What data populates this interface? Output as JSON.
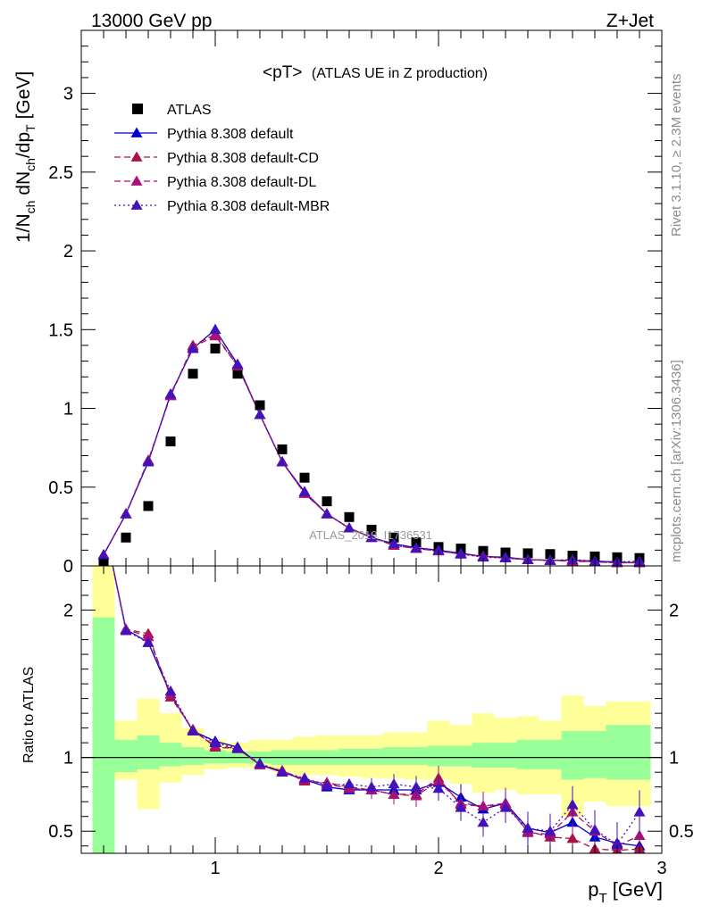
{
  "header": {
    "left": "13000 GeV pp",
    "right": "Z+Jet"
  },
  "side_texts": {
    "rivet": "Rivet 3.1.10, ≥ 2.3M events",
    "mcplots": "mcplots.cern.ch [arXiv:1306.3436]"
  },
  "chart_data": [
    {
      "type": "scatter",
      "title": "<pT> (ATLAS UE in Z production)",
      "title_main": "<pT>",
      "title_sub": "(ATLAS UE in Z production)",
      "watermark": "ATLAS_2019_I1736531",
      "ylabel": "1/N_ch dN_ch/dp_T [GeV]",
      "ylabel_parts": {
        "a": "1/N",
        "a_sub": "ch",
        "b": " dN",
        "b_sub": "ch",
        "c": "/dp",
        "c_sub": "T",
        "d": " [GeV]"
      },
      "ylim": [
        0,
        3.4
      ],
      "xlim": [
        0.4,
        3.0
      ],
      "yticks": [
        0,
        0.5,
        1,
        1.5,
        2,
        2.5,
        3
      ],
      "ytick_labels": [
        "0",
        "0.5",
        "1",
        "1.5",
        "2",
        "2.5",
        "3"
      ],
      "legend_position": "top-left",
      "x": [
        0.5,
        0.6,
        0.7,
        0.8,
        0.9,
        1.0,
        1.1,
        1.2,
        1.3,
        1.4,
        1.5,
        1.6,
        1.7,
        1.8,
        1.9,
        2.0,
        2.1,
        2.2,
        2.3,
        2.4,
        2.5,
        2.6,
        2.7,
        2.8,
        2.9
      ],
      "series": [
        {
          "name": "ATLAS",
          "color": "#000000",
          "marker": "square",
          "line": "none",
          "values": [
            0.02,
            0.18,
            0.38,
            0.79,
            1.22,
            1.38,
            1.22,
            1.02,
            0.74,
            0.56,
            0.41,
            0.31,
            0.23,
            0.18,
            0.15,
            0.12,
            0.11,
            0.095,
            0.085,
            0.08,
            0.075,
            0.065,
            0.06,
            0.055,
            0.05
          ]
        },
        {
          "name": "Pythia 8.308 default",
          "color": "#0000cc",
          "marker": "triangle",
          "line": "solid",
          "values": [
            0.07,
            0.33,
            0.66,
            1.09,
            1.38,
            1.5,
            1.28,
            0.96,
            0.66,
            0.47,
            0.33,
            0.24,
            0.18,
            0.14,
            0.115,
            0.1,
            0.08,
            0.06,
            0.055,
            0.04,
            0.035,
            0.035,
            0.03,
            0.025,
            0.02
          ]
        },
        {
          "name": "Pythia 8.308 default-CD",
          "color": "#aa1144",
          "marker": "triangle",
          "line": "dashed",
          "values": [
            0.07,
            0.33,
            0.67,
            1.08,
            1.4,
            1.47,
            1.27,
            0.96,
            0.66,
            0.46,
            0.33,
            0.24,
            0.18,
            0.13,
            0.11,
            0.095,
            0.075,
            0.06,
            0.05,
            0.04,
            0.035,
            0.03,
            0.025,
            0.02,
            0.02
          ]
        },
        {
          "name": "Pythia 8.308 default-DL",
          "color": "#aa1177",
          "marker": "triangle",
          "line": "dashed",
          "values": [
            0.07,
            0.33,
            0.67,
            1.08,
            1.39,
            1.46,
            1.27,
            0.96,
            0.66,
            0.46,
            0.33,
            0.24,
            0.18,
            0.13,
            0.11,
            0.095,
            0.075,
            0.06,
            0.05,
            0.04,
            0.035,
            0.035,
            0.025,
            0.02,
            0.02
          ]
        },
        {
          "name": "Pythia 8.308 default-MBR",
          "color": "#4411bb",
          "marker": "triangle",
          "line": "dotted",
          "values": [
            0.07,
            0.33,
            0.66,
            1.09,
            1.38,
            1.5,
            1.28,
            0.96,
            0.66,
            0.47,
            0.33,
            0.24,
            0.18,
            0.14,
            0.115,
            0.1,
            0.075,
            0.055,
            0.05,
            0.04,
            0.035,
            0.04,
            0.03,
            0.025,
            0.03
          ]
        }
      ]
    },
    {
      "type": "line",
      "ylabel": "Ratio to ATLAS",
      "xlabel": "p_T [GeV]",
      "xlabel_parts": {
        "a": "p",
        "a_sub": "T",
        "b": " [GeV]"
      },
      "ylim": [
        0.35,
        2.3
      ],
      "xlim": [
        0.4,
        3.0
      ],
      "yticks": [
        0.5,
        1,
        2
      ],
      "ytick_labels": [
        "0.5",
        "1",
        "2"
      ],
      "xticks": [
        1,
        2,
        3
      ],
      "xtick_labels": [
        "1",
        "2",
        "3"
      ],
      "reference_line": 1,
      "x": [
        0.5,
        0.6,
        0.7,
        0.8,
        0.9,
        1.0,
        1.1,
        1.2,
        1.3,
        1.4,
        1.5,
        1.6,
        1.7,
        1.8,
        1.9,
        2.0,
        2.1,
        2.2,
        2.3,
        2.4,
        2.5,
        2.6,
        2.7,
        2.8,
        2.9
      ],
      "bands": {
        "stat": {
          "color": "#99ff99",
          "lo": [
            0.3,
            0.9,
            0.92,
            0.94,
            0.95,
            0.96,
            0.96,
            0.96,
            0.95,
            0.95,
            0.95,
            0.95,
            0.95,
            0.95,
            0.95,
            0.94,
            0.94,
            0.93,
            0.93,
            0.92,
            0.92,
            0.85,
            0.86,
            0.85,
            0.85
          ],
          "hi": [
            1.95,
            1.12,
            1.15,
            1.1,
            1.07,
            1.05,
            1.04,
            1.04,
            1.05,
            1.05,
            1.05,
            1.06,
            1.06,
            1.07,
            1.07,
            1.08,
            1.08,
            1.1,
            1.1,
            1.12,
            1.12,
            1.18,
            1.18,
            1.22,
            1.22
          ]
        },
        "total": {
          "color": "#ffff99",
          "lo": [
            0.3,
            0.85,
            0.65,
            0.83,
            0.88,
            0.92,
            0.93,
            0.93,
            0.9,
            0.88,
            0.88,
            0.87,
            0.86,
            0.86,
            0.85,
            0.85,
            0.82,
            0.76,
            0.78,
            0.75,
            0.75,
            0.6,
            0.7,
            0.67,
            0.67
          ],
          "hi": [
            2.35,
            1.25,
            1.4,
            1.3,
            1.2,
            1.12,
            1.1,
            1.12,
            1.12,
            1.14,
            1.15,
            1.15,
            1.15,
            1.17,
            1.17,
            1.25,
            1.22,
            1.3,
            1.27,
            1.28,
            1.25,
            1.42,
            1.35,
            1.38,
            1.38
          ]
        }
      },
      "series": [
        {
          "name": "Pythia 8.308 default",
          "color": "#0000cc",
          "marker": "triangle",
          "line": "solid",
          "values": [
            2.6,
            1.87,
            1.78,
            1.43,
            1.18,
            1.11,
            1.07,
            0.95,
            0.9,
            0.85,
            0.8,
            0.78,
            0.78,
            0.78,
            0.78,
            0.83,
            0.73,
            0.65,
            0.69,
            0.52,
            0.49,
            0.56,
            0.46,
            0.42,
            0.4
          ]
        },
        {
          "name": "Pythia 8.308 default-CD",
          "color": "#aa1144",
          "marker": "triangle",
          "line": "dashed",
          "values": [
            2.6,
            1.87,
            1.84,
            1.41,
            1.19,
            1.07,
            1.06,
            0.95,
            0.91,
            0.84,
            0.83,
            0.8,
            0.78,
            0.75,
            0.75,
            0.86,
            0.68,
            0.67,
            0.68,
            0.5,
            0.46,
            0.45,
            0.38,
            0.37,
            0.38
          ]
        },
        {
          "name": "Pythia 8.308 default-DL",
          "color": "#aa1177",
          "marker": "triangle",
          "line": "dashed",
          "values": [
            2.6,
            1.87,
            1.82,
            1.43,
            1.18,
            1.08,
            1.06,
            0.95,
            0.91,
            0.85,
            0.82,
            0.79,
            0.78,
            0.75,
            0.74,
            0.84,
            0.69,
            0.67,
            0.69,
            0.49,
            0.48,
            0.63,
            0.5,
            0.4,
            0.47
          ]
        },
        {
          "name": "Pythia 8.308 default-MBR",
          "color": "#4411bb",
          "marker": "triangle",
          "line": "dotted",
          "values": [
            2.6,
            1.86,
            1.78,
            1.45,
            1.18,
            1.1,
            1.06,
            0.96,
            0.9,
            0.86,
            0.81,
            0.82,
            0.8,
            0.82,
            0.8,
            0.79,
            0.66,
            0.56,
            0.66,
            0.52,
            0.5,
            0.68,
            0.51,
            0.41,
            0.63
          ]
        }
      ]
    }
  ]
}
